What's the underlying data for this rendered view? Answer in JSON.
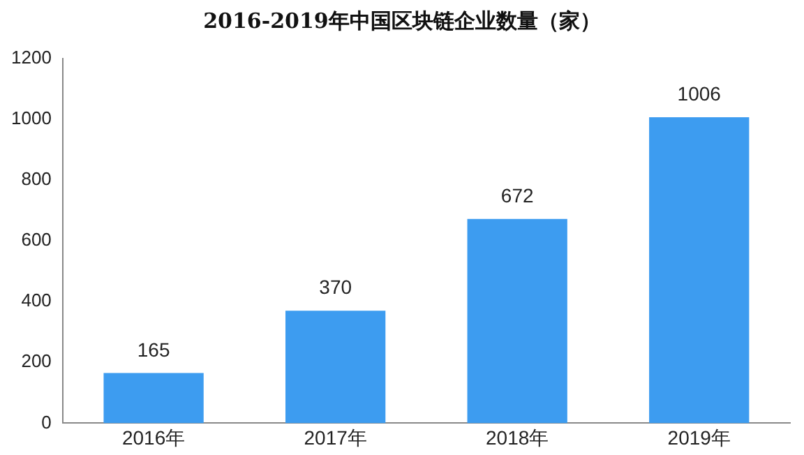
{
  "chart_data": {
    "type": "bar",
    "title": "2016-2019年中国区块链企业数量（家）",
    "categories": [
      "2016年",
      "2017年",
      "2018年",
      "2019年"
    ],
    "values": [
      165,
      370,
      672,
      1006
    ],
    "color": "#3d9cf0",
    "ylim": [
      0,
      1200
    ],
    "yticks": [
      0,
      200,
      400,
      600,
      800,
      1000,
      1200
    ],
    "grid": false,
    "legend": false,
    "data_labels": true
  }
}
